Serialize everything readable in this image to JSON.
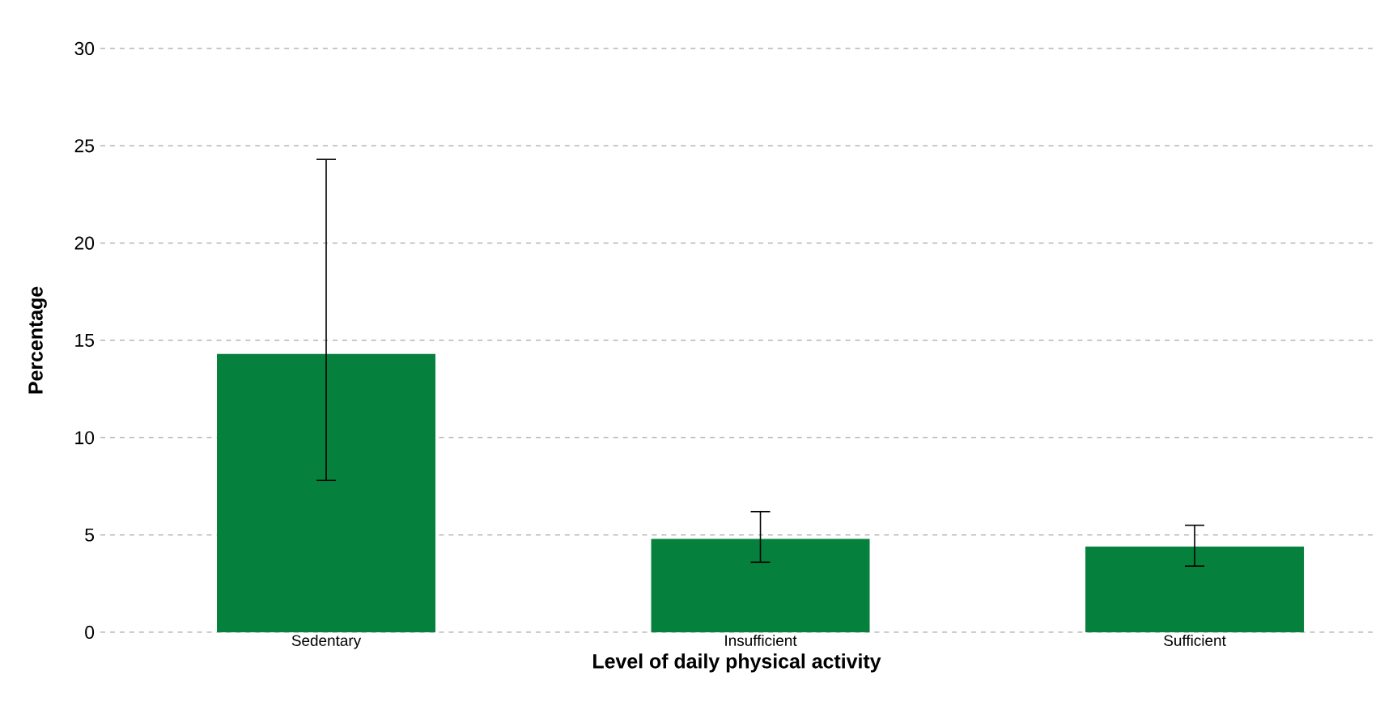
{
  "chart_data": {
    "type": "bar",
    "xlabel": "Level of daily physical activity",
    "ylabel": "Percentage",
    "categories": [
      "Sedentary",
      "Insufficient",
      "Sufficient"
    ],
    "values": [
      14.3,
      4.8,
      4.4
    ],
    "errors": [
      [
        7.8,
        24.3
      ],
      [
        3.6,
        6.2
      ],
      [
        3.4,
        5.5
      ]
    ],
    "color": "#06803d",
    "ylim": [
      0,
      30
    ],
    "yticks": [
      0,
      5,
      10,
      15,
      20,
      25,
      30
    ],
    "grid": "y"
  }
}
